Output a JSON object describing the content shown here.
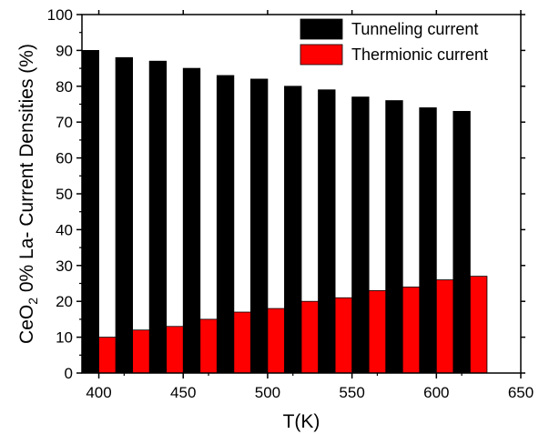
{
  "chart_data": {
    "type": "bar",
    "xlabel": "T(K)",
    "ylabel": {
      "parts": [
        "CeO",
        "2",
        " 0% La- Current Densities (%)"
      ]
    },
    "x": [
      400,
      420,
      440,
      460,
      480,
      500,
      520,
      540,
      560,
      580,
      600,
      620
    ],
    "xlim": [
      390,
      650
    ],
    "ylim": [
      0,
      100
    ],
    "xticks": [
      400,
      450,
      500,
      550,
      600,
      650
    ],
    "yticks": [
      0,
      10,
      20,
      30,
      40,
      50,
      60,
      70,
      80,
      90,
      100
    ],
    "series": [
      {
        "name": "Tunneling current",
        "color": "#000000",
        "values": [
          90,
          88,
          87,
          85,
          83,
          82,
          80,
          79,
          77,
          76,
          74,
          73
        ]
      },
      {
        "name": "Thermionic current",
        "color": "#ff0000",
        "values": [
          10,
          12,
          13,
          15,
          17,
          18,
          20,
          21,
          23,
          24,
          26,
          27
        ]
      }
    ],
    "legend": "top-right",
    "grid": false
  }
}
